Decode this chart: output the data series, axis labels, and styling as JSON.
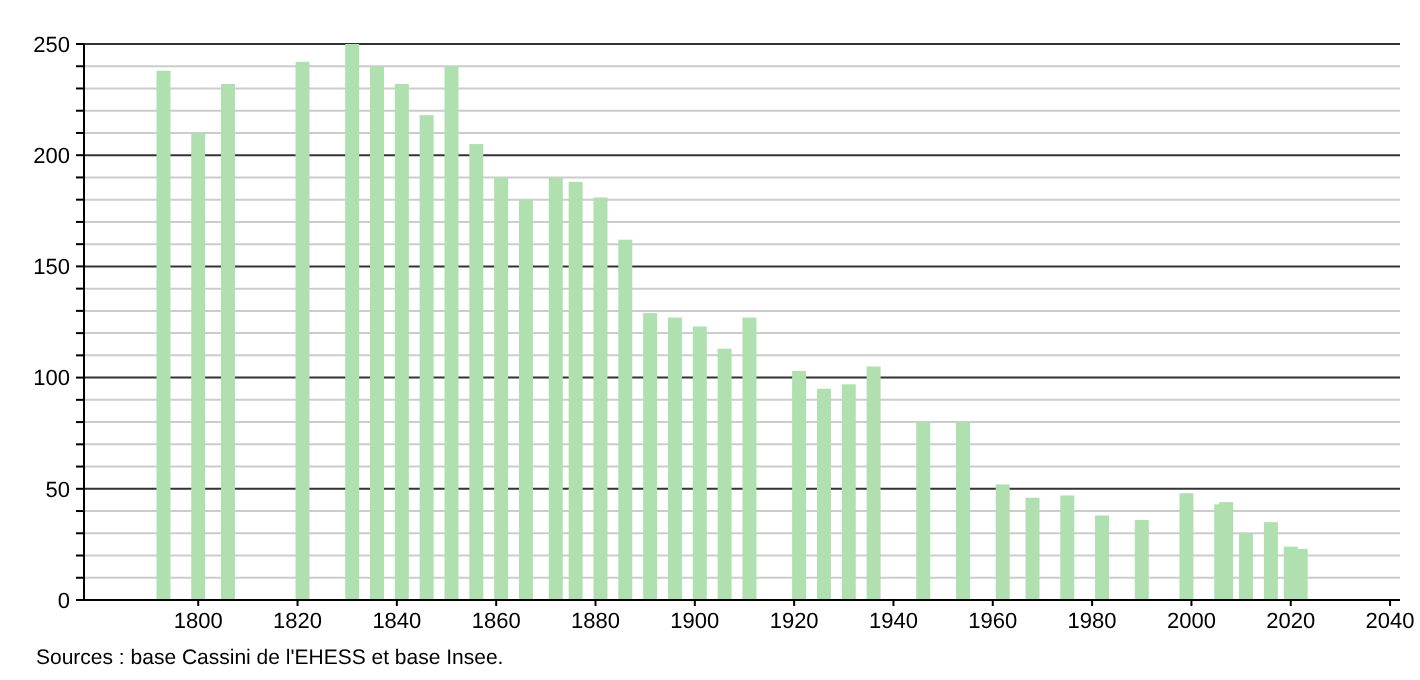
{
  "chart_data": {
    "type": "bar",
    "x": [
      1793,
      1800,
      1806,
      1821,
      1831,
      1836,
      1841,
      1846,
      1851,
      1856,
      1861,
      1866,
      1872,
      1876,
      1881,
      1886,
      1891,
      1896,
      1901,
      1906,
      1911,
      1921,
      1926,
      1931,
      1936,
      1946,
      1954,
      1962,
      1968,
      1975,
      1982,
      1990,
      1999,
      2006,
      2007,
      2011,
      2016,
      2020,
      2022
    ],
    "values": [
      238,
      210,
      232,
      242,
      250,
      240,
      232,
      218,
      240,
      205,
      190,
      180,
      190,
      188,
      181,
      162,
      129,
      127,
      123,
      113,
      127,
      103,
      95,
      97,
      105,
      80,
      80,
      52,
      46,
      47,
      38,
      36,
      48,
      43,
      44,
      30,
      35,
      24,
      23
    ],
    "color": "#b0e0b0",
    "xlim": [
      1777,
      2042
    ],
    "xticks": [
      1800,
      1820,
      1840,
      1860,
      1880,
      1900,
      1920,
      1940,
      1960,
      1980,
      2000,
      2020,
      2040
    ],
    "ylim": [
      0,
      250
    ],
    "yticks": [
      0,
      {
        "value": 10,
        "label": null
      },
      {
        "value": 20,
        "label": null
      },
      {
        "value": 30,
        "label": null
      },
      {
        "value": 40,
        "label": null
      },
      50,
      {
        "value": 60,
        "label": null
      },
      {
        "value": 70,
        "label": null
      },
      {
        "value": 80,
        "label": null
      },
      {
        "value": 90,
        "label": null
      },
      100,
      {
        "value": 110,
        "label": null
      },
      {
        "value": 120,
        "label": null
      },
      {
        "value": 130,
        "label": null
      },
      {
        "value": 140,
        "label": null
      },
      150,
      {
        "value": 160,
        "label": null
      },
      {
        "value": 170,
        "label": null
      },
      {
        "value": 180,
        "label": null
      },
      {
        "value": 190,
        "label": null
      },
      200,
      {
        "value": 210,
        "label": null
      },
      {
        "value": 220,
        "label": null
      },
      {
        "value": 230,
        "label": null
      },
      {
        "value": 240,
        "label": null
      },
      250
    ],
    "grid": "y",
    "annotations": [
      "Sources : base Cassini de l'EHESS et base Insee."
    ]
  }
}
